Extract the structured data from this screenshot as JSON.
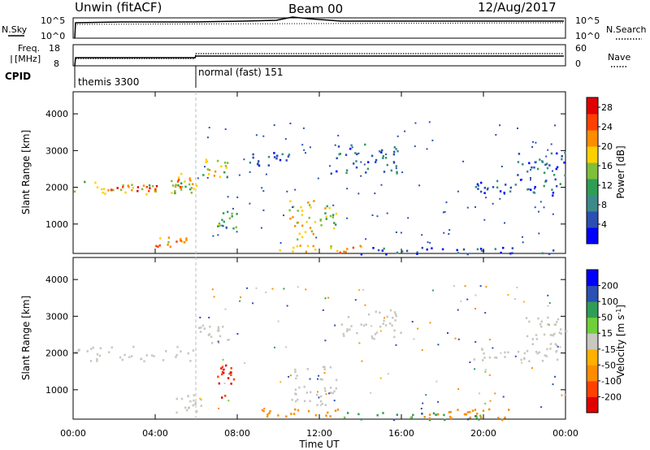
{
  "header": {
    "radar": "Unwin (fitACF)",
    "beam": "Beam 00",
    "date": "12/Aug/2017"
  },
  "top_panels": {
    "nsky_label": "N.Sky",
    "nsearch_label": "N.Search",
    "noise_left_ticks": [
      "10^5",
      "10^0"
    ],
    "noise_right_ticks": [
      "10^5",
      "10^0"
    ],
    "freq_label_1": "Freq.",
    "freq_label_2": "[MHz]",
    "freq_ticks": [
      "18",
      "8"
    ],
    "nave_label": "Nave",
    "nave_ticks": [
      "60",
      "0"
    ],
    "cpid_label": "CPID",
    "cpid_segments": [
      {
        "name": "themis 3300",
        "start_hour": 0
      },
      {
        "name": "normal (fast) 151",
        "start_hour": 6
      }
    ]
  },
  "colors": {
    "power_scale": [
      "#0000ff",
      "#2b4fb3",
      "#3d8a8a",
      "#2f9d55",
      "#7fbf3a",
      "#ffd000",
      "#ff8c00",
      "#ff4000",
      "#e00000"
    ],
    "velocity_scale": [
      "#e00000",
      "#ff4000",
      "#ff8c00",
      "#ffb000",
      "#c8c8c0",
      "#c8c8c0",
      "#6fd03a",
      "#2f9d55",
      "#2b4fb3",
      "#0000ff"
    ]
  },
  "chart_data": [
    {
      "type": "heatmap",
      "title": "",
      "xlabel": "",
      "ylabel": "Slant Range [km]",
      "xlim": [
        0,
        24
      ],
      "ylim": [
        200,
        4600
      ],
      "x_ticks": [
        0,
        4,
        8,
        12,
        16,
        20,
        24
      ],
      "y_ticks": [
        1000,
        2000,
        3000,
        4000
      ],
      "colorbar_label": "Power [dB]",
      "colorbar_ticks": [
        "4",
        "8",
        "12",
        "16",
        "20",
        "24",
        "28"
      ],
      "colorbar_range": [
        0,
        30
      ],
      "regions": [
        {
          "t0": 0.0,
          "t1": 6.0,
          "r0": 1800,
          "r1": 2200,
          "level": 16
        },
        {
          "t0": 1.8,
          "t1": 4.5,
          "r0": 1900,
          "r1": 2100,
          "level": 24
        },
        {
          "t0": 4.8,
          "t1": 6.0,
          "r0": 2000,
          "r1": 2400,
          "level": 20
        },
        {
          "t0": 6.0,
          "t1": 7.5,
          "r0": 2300,
          "r1": 2800,
          "level": 16
        },
        {
          "t0": 8.5,
          "t1": 10.5,
          "r0": 2600,
          "r1": 3000,
          "level": 6
        },
        {
          "t0": 4.0,
          "t1": 5.5,
          "r0": 400,
          "r1": 700,
          "level": 20
        },
        {
          "t0": 7.0,
          "t1": 8.0,
          "r0": 900,
          "r1": 1400,
          "level": 14
        },
        {
          "t0": 10.5,
          "t1": 11.8,
          "r0": 500,
          "r1": 1700,
          "level": 18
        },
        {
          "t0": 12.0,
          "t1": 12.8,
          "r0": 900,
          "r1": 1600,
          "level": 16
        },
        {
          "t0": 10.0,
          "t1": 14.0,
          "r0": 250,
          "r1": 450,
          "level": 20
        },
        {
          "t0": 12.5,
          "t1": 16.0,
          "r0": 2400,
          "r1": 3200,
          "level": 6
        },
        {
          "t0": 14.0,
          "t1": 24.0,
          "r0": 200,
          "r1": 400,
          "level": 6
        },
        {
          "t0": 19.5,
          "t1": 24.0,
          "r0": 1800,
          "r1": 2200,
          "level": 6
        },
        {
          "t0": 21.5,
          "t1": 24.0,
          "r0": 2200,
          "r1": 3000,
          "level": 6
        }
      ]
    },
    {
      "type": "heatmap",
      "title": "",
      "xlabel": "Time UT",
      "ylabel": "Slant Range [km]",
      "xlim": [
        0,
        24
      ],
      "ylim": [
        200,
        4600
      ],
      "x_ticks": [
        0,
        4,
        8,
        12,
        16,
        20,
        24
      ],
      "x_tick_labels": [
        "00:00",
        "04:00",
        "08:00",
        "12:00",
        "16:00",
        "20:00",
        "00:00"
      ],
      "y_ticks": [
        1000,
        2000,
        3000,
        4000
      ],
      "colorbar_label": "Velocity [m s",
      "colorbar_label_exponent": "-1",
      "colorbar_label_end": "]",
      "colorbar_ticks": [
        "-200",
        "-100",
        "-50",
        "-15",
        "15",
        "50",
        "100",
        "200"
      ],
      "regions": [
        {
          "t0": 0.0,
          "t1": 6.0,
          "r0": 1800,
          "r1": 2200,
          "vel": 0
        },
        {
          "t0": 6.0,
          "t1": 7.5,
          "r0": 2300,
          "r1": 2800,
          "vel": 0
        },
        {
          "t0": 7.0,
          "t1": 7.8,
          "r0": 800,
          "r1": 1700,
          "vel": -200
        },
        {
          "t0": 5.0,
          "t1": 6.5,
          "r0": 400,
          "r1": 900,
          "vel": 0
        },
        {
          "t0": 10.5,
          "t1": 12.8,
          "r0": 600,
          "r1": 1700,
          "vel": 0
        },
        {
          "t0": 9.0,
          "t1": 13.0,
          "r0": 300,
          "r1": 500,
          "vel": -80
        },
        {
          "t0": 13.0,
          "t1": 20.0,
          "r0": 200,
          "r1": 400,
          "vel": 40
        },
        {
          "t0": 17.0,
          "t1": 21.5,
          "r0": 200,
          "r1": 500,
          "vel": -80
        },
        {
          "t0": 13.0,
          "t1": 16.0,
          "r0": 2400,
          "r1": 3200,
          "vel": 0
        },
        {
          "t0": 19.5,
          "t1": 24.0,
          "r0": 1800,
          "r1": 2200,
          "vel": 0
        },
        {
          "t0": 22.0,
          "t1": 24.0,
          "r0": 2200,
          "r1": 3000,
          "vel": 0
        }
      ]
    }
  ]
}
